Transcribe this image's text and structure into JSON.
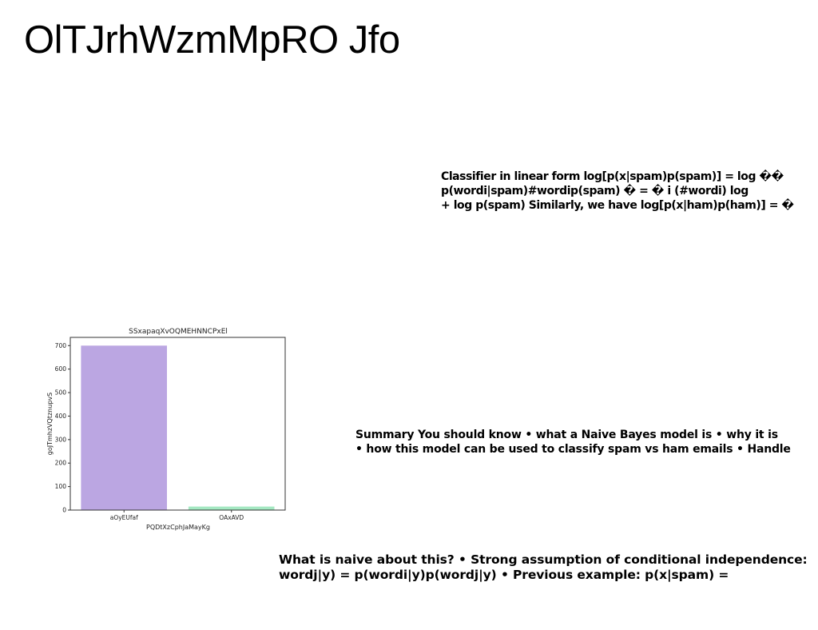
{
  "title": "OlTJrhWzmMpRO Jfo",
  "blocks": {
    "classifier": [
      "Classifier in linear form log[p(x|spam)p(spam)] = log ��",
      "p(wordi|spam)#wordip(spam) � = � i (#wordi) log",
      "+ log p(spam) Similarly, we have log[p(x|ham)p(ham)] = �"
    ],
    "summary": [
      "Summary You should know • what a Naive Bayes model is • why it is",
      "• how this model can be used to classify spam vs ham emails • Handle"
    ],
    "naive": [
      "What is naive about this? • Strong assumption of conditional independence:",
      "wordj|y) = p(wordi|y)p(wordj|y) • Previous example: p(x|spam) ="
    ]
  },
  "chart_data": {
    "type": "bar",
    "title": "SSxapaqXvOQMEHNNCPxEl",
    "xlabel": "PQDtXzCphJaMayKg",
    "ylabel": "goJTmhzVQtznupvS",
    "categories": [
      "aOyEUfaf",
      "OAxAVD"
    ],
    "values": [
      700,
      15
    ],
    "colors": [
      "#bba6e2",
      "#a4e8c2"
    ],
    "ylim": [
      0,
      735
    ],
    "yticks": [
      0,
      100,
      200,
      300,
      400,
      500,
      600,
      700
    ],
    "ytick_labels": [
      "0",
      "100",
      "200",
      "300",
      "400",
      "500",
      "600",
      "700"
    ],
    "grid": false,
    "legend": "none"
  }
}
